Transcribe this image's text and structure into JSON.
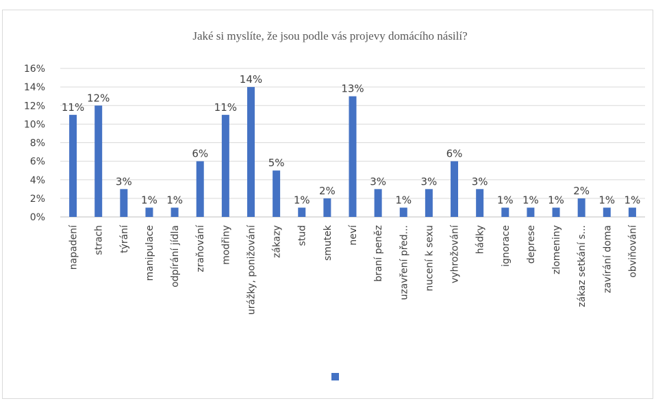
{
  "chart_data": {
    "type": "bar",
    "title": "Jaké si myslíte, že jsou podle vás projevy domácího násilí?",
    "categories": [
      "napadení",
      "strach",
      "týrání",
      "manipulace",
      "odpírání jídla",
      "zraňování",
      "modřiny",
      "urážky, ponižování",
      "zákazy",
      "stud",
      "smutek",
      "neví",
      "braní peněz",
      "uzavření před...",
      "nucení k sexu",
      "vyhrožování",
      "hádky",
      "ignorace",
      "deprese",
      "zlomeniny",
      "zákaz setkání s...",
      "zavírání doma",
      "obviňování"
    ],
    "values": [
      11,
      12,
      3,
      1,
      1,
      6,
      11,
      14,
      5,
      1,
      2,
      13,
      3,
      1,
      3,
      6,
      3,
      1,
      1,
      1,
      2,
      1,
      1
    ],
    "data_labels": [
      "11%",
      "12%",
      "3%",
      "1%",
      "1%",
      "6%",
      "11%",
      "14%",
      "5%",
      "1%",
      "2%",
      "13%",
      "3%",
      "1%",
      "3%",
      "6%",
      "3%",
      "1%",
      "1%",
      "1%",
      "2%",
      "1%",
      "1%"
    ],
    "y_ticks": [
      "0%",
      "2%",
      "4%",
      "6%",
      "8%",
      "10%",
      "12%",
      "14%",
      "16%"
    ],
    "ylim": [
      0,
      16
    ],
    "grid": true,
    "legend": "bottom",
    "bar_color": "#4472C4"
  }
}
